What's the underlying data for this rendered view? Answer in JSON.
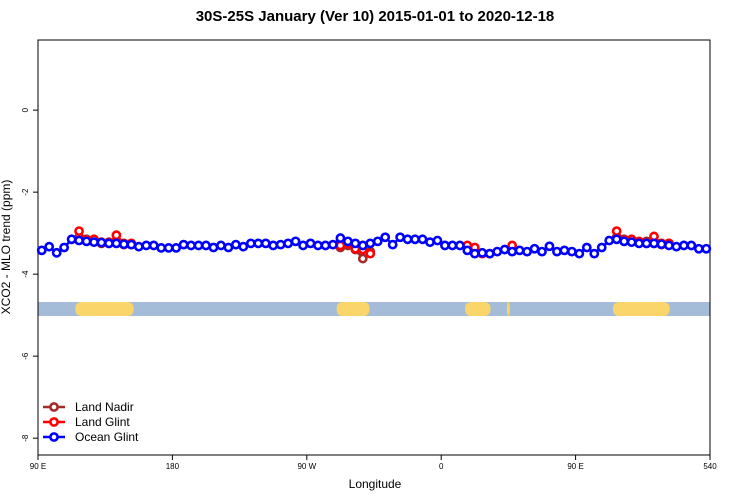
{
  "chart_data": {
    "type": "line",
    "title": "30S-25S January (Ver 10)   2015-01-01 to 2020-12-18",
    "x_label": "Longitude",
    "y_label": "XCO2 - MLO trend (ppm)",
    "xlim": [
      90,
      540
    ],
    "ylim": [
      -8.41,
      1.71
    ],
    "xticks": [
      {
        "value": 90,
        "label": "90 E"
      },
      180,
      {
        "value": 270,
        "label": "90 W"
      },
      {
        "value": 360,
        "label": "0"
      },
      {
        "value": 450,
        "label": "90 E"
      },
      540
    ],
    "yticks": [
      0,
      -2,
      -4,
      -6,
      -8
    ],
    "legend": "bottom-left",
    "land_strip": {
      "value": -4.85,
      "ocean_color": "#a5bcd8",
      "land_color": "#fad56a",
      "land": [
        [
          115,
          154
        ],
        [
          290,
          312
        ],
        [
          376,
          393
        ],
        [
          404,
          406
        ],
        [
          475,
          513
        ]
      ]
    },
    "series": [
      {
        "name": "Land Nadir",
        "color": "#a52a2a",
        "x": [
          117.5,
          122.5,
          127.5,
          132.5,
          137.5,
          142.5,
          147.5,
          152.5,
          200,
          292.5,
          297.5,
          302.5,
          307.5,
          312.5,
          350,
          377.5,
          382.5,
          430,
          477.5,
          482.5,
          487.5,
          492.5,
          497.5,
          502.5,
          507.5,
          512.5
        ],
        "values": [
          -3.1,
          -3.15,
          -3.2,
          -3.25,
          -3.22,
          -3.2,
          -3.28,
          -3.28,
          null,
          -3.35,
          -3.3,
          -3.4,
          -3.62,
          -3.45,
          null,
          -3.35,
          -3.45,
          null,
          -3.1,
          -3.15,
          -3.2,
          -3.22,
          -3.2,
          -3.25,
          -3.28,
          -3.25
        ]
      },
      {
        "name": "Land Glint",
        "color": "#ff0000",
        "x": [
          117.5,
          122.5,
          127.5,
          132.5,
          137.5,
          142.5,
          147.5,
          152.5,
          200,
          292.5,
          297.5,
          302.5,
          307.5,
          312.5,
          350,
          377.5,
          382.5,
          387.5,
          392.5,
          400,
          407.5,
          440,
          477.5,
          482.5,
          487.5,
          492.5,
          497.5,
          502.5,
          507.5,
          512.5
        ],
        "values": [
          -2.95,
          -3.18,
          -3.15,
          -3.22,
          -3.25,
          -3.05,
          -3.25,
          -3.25,
          null,
          -3.3,
          -3.25,
          -3.38,
          -3.4,
          -3.5,
          null,
          -3.3,
          -3.35,
          -3.5,
          -3.5,
          null,
          -3.3,
          null,
          -2.95,
          -3.18,
          -3.15,
          -3.2,
          -3.25,
          -3.08,
          -3.25,
          -3.25
        ]
      },
      {
        "name": "Ocean Glint",
        "color": "#0000ff",
        "x": [
          92.5,
          97.5,
          102.5,
          107.5,
          112.5,
          117.5,
          122.5,
          127.5,
          132.5,
          137.5,
          142.5,
          147.5,
          152.5,
          157.5,
          162.5,
          167.5,
          172.5,
          177.5,
          182.5,
          187.5,
          192.5,
          197.5,
          202.5,
          207.5,
          212.5,
          217.5,
          222.5,
          227.5,
          232.5,
          237.5,
          242.5,
          247.5,
          252.5,
          257.5,
          262.5,
          267.5,
          272.5,
          277.5,
          282.5,
          287.5,
          292.5,
          297.5,
          302.5,
          307.5,
          312.5,
          317.5,
          322.5,
          327.5,
          332.5,
          337.5,
          342.5,
          347.5,
          352.5,
          357.5,
          362.5,
          367.5,
          372.5,
          377.5,
          382.5,
          387.5,
          392.5,
          397.5,
          402.5,
          407.5,
          412.5,
          417.5,
          422.5,
          427.5,
          432.5,
          437.5,
          442.5,
          447.5,
          452.5,
          457.5,
          462.5,
          467.5,
          472.5,
          477.5,
          482.5,
          487.5,
          492.5,
          497.5,
          502.5,
          507.5,
          512.5,
          517.5,
          522.5,
          527.5,
          532.5,
          537.5
        ],
        "values": [
          -3.42,
          -3.33,
          -3.48,
          -3.35,
          -3.15,
          -3.18,
          -3.2,
          -3.22,
          -3.23,
          -3.25,
          -3.25,
          -3.27,
          -3.28,
          -3.33,
          -3.3,
          -3.3,
          -3.36,
          -3.36,
          -3.36,
          -3.28,
          -3.3,
          -3.3,
          -3.3,
          -3.35,
          -3.3,
          -3.35,
          -3.28,
          -3.33,
          -3.25,
          -3.25,
          -3.25,
          -3.3,
          -3.28,
          -3.25,
          -3.2,
          -3.3,
          -3.25,
          -3.3,
          -3.3,
          -3.28,
          -3.12,
          -3.2,
          -3.25,
          -3.3,
          -3.25,
          -3.2,
          -3.1,
          -3.28,
          -3.1,
          -3.15,
          -3.15,
          -3.15,
          -3.22,
          -3.18,
          -3.3,
          -3.3,
          -3.3,
          -3.42,
          -3.5,
          -3.48,
          -3.5,
          -3.45,
          -3.4,
          -3.45,
          -3.42,
          -3.45,
          -3.38,
          -3.45,
          -3.32,
          -3.45,
          -3.42,
          -3.45,
          -3.5,
          -3.35,
          -3.5,
          -3.35,
          -3.18,
          -3.15,
          -3.2,
          -3.22,
          -3.25,
          -3.25,
          -3.25,
          -3.27,
          -3.3,
          -3.33,
          -3.3,
          -3.3,
          -3.38,
          -3.38
        ]
      }
    ]
  }
}
